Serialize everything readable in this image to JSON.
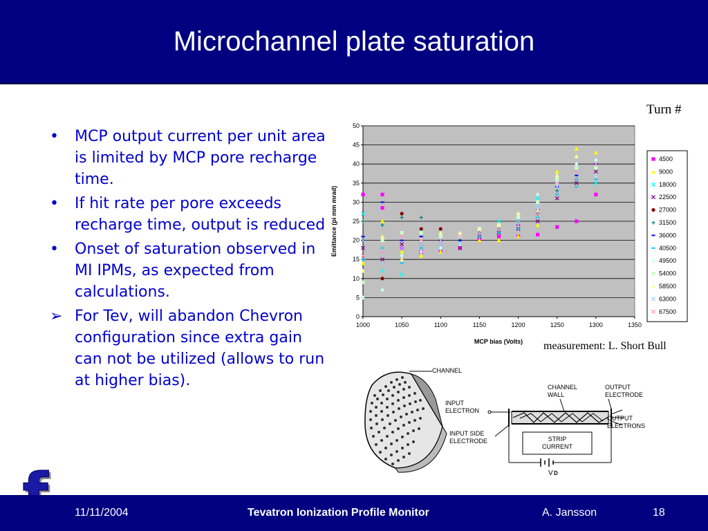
{
  "slide": {
    "title": "Microchannel plate saturation",
    "bullets": [
      {
        "marker": "•",
        "text": "MCP output current per unit area is limited by MCP pore recharge time."
      },
      {
        "marker": "•",
        "text": "If hit rate per pore exceeds recharge time, output is reduced"
      },
      {
        "marker": "•",
        "text": "Onset of saturation observed in MI IPMs, as expected from calculations."
      },
      {
        "marker": "➢",
        "text": "For Tev, will abandon Chevron configuration since extra gain can not be utilized (allows to run at higher bias)."
      }
    ],
    "turn_label": "Turn #",
    "measurement_credit": "measurement:  L. Short Bull"
  },
  "footer": {
    "date": "11/11/2004",
    "title": "Tevatron Ionization Profile Monitor",
    "author": "A. Jansson",
    "page": "18"
  },
  "logo": {
    "letter": "f",
    "color": "#1a1aa6"
  },
  "colors": {
    "title_bar": "#000080",
    "bullet_text": "#0000cc",
    "plot_bg": "#c0c0c0"
  },
  "chart_data": {
    "type": "scatter",
    "xlabel": "MCP bias (Volts)",
    "ylabel": "Emittance (pi mm mrad)",
    "xlim": [
      1000,
      1350
    ],
    "ylim": [
      0,
      50
    ],
    "xticks": [
      "1000",
      "1050",
      "1100",
      "1150",
      "1200",
      "1250",
      "1300",
      "1350"
    ],
    "yticks": [
      "0",
      "5",
      "10",
      "15",
      "20",
      "25",
      "30",
      "35",
      "40",
      "45",
      "50"
    ],
    "grid": "horizontal",
    "legend_position": "right",
    "series": [
      {
        "name": "4500",
        "color": "#ff00ff",
        "marker": "square",
        "points": [
          [
            1000,
            32
          ],
          [
            1025,
            28.5
          ],
          [
            1025,
            32
          ],
          [
            1050,
            18
          ],
          [
            1075,
            17
          ],
          [
            1100,
            17
          ],
          [
            1125,
            18
          ],
          [
            1150,
            20
          ],
          [
            1175,
            21
          ],
          [
            1200,
            21
          ],
          [
            1225,
            21.5
          ],
          [
            1250,
            23.5
          ],
          [
            1275,
            25
          ],
          [
            1300,
            32
          ]
        ]
      },
      {
        "name": "9000",
        "color": "#ffff00",
        "marker": "triangle",
        "points": [
          [
            1000,
            14
          ],
          [
            1025,
            25
          ],
          [
            1050,
            17
          ],
          [
            1075,
            16
          ],
          [
            1100,
            17
          ],
          [
            1125,
            19
          ],
          [
            1150,
            20
          ],
          [
            1175,
            20
          ],
          [
            1200,
            21
          ],
          [
            1225,
            24
          ],
          [
            1250,
            38
          ],
          [
            1275,
            44
          ],
          [
            1300,
            43
          ]
        ]
      },
      {
        "name": "18000",
        "color": "#00ffff",
        "marker": "x",
        "points": [
          [
            1000,
            27
          ],
          [
            1025,
            12
          ],
          [
            1050,
            11
          ],
          [
            1075,
            22
          ],
          [
            1100,
            20
          ],
          [
            1125,
            21
          ],
          [
            1150,
            22
          ],
          [
            1175,
            25
          ],
          [
            1200,
            26
          ],
          [
            1225,
            31
          ],
          [
            1250,
            36
          ],
          [
            1275,
            38
          ],
          [
            1300,
            35
          ]
        ]
      },
      {
        "name": "22500",
        "color": "#800080",
        "marker": "x",
        "points": [
          [
            1000,
            18
          ],
          [
            1025,
            15
          ],
          [
            1050,
            19
          ],
          [
            1075,
            19
          ],
          [
            1100,
            19
          ],
          [
            1125,
            18
          ],
          [
            1150,
            21
          ],
          [
            1175,
            22
          ],
          [
            1200,
            23
          ],
          [
            1225,
            25
          ],
          [
            1250,
            31
          ],
          [
            1275,
            35
          ],
          [
            1300,
            38
          ]
        ]
      },
      {
        "name": "27000",
        "color": "#800000",
        "marker": "circle",
        "points": [
          [
            1025,
            10
          ],
          [
            1050,
            27
          ],
          [
            1075,
            23
          ],
          [
            1100,
            23
          ]
        ]
      },
      {
        "name": "31500",
        "color": "#008080",
        "marker": "plus",
        "points": [
          [
            1000,
            25
          ],
          [
            1025,
            24
          ],
          [
            1050,
            26
          ],
          [
            1075,
            26
          ],
          [
            1100,
            21
          ],
          [
            1125,
            20
          ],
          [
            1150,
            22
          ],
          [
            1175,
            23
          ],
          [
            1200,
            25
          ],
          [
            1225,
            27
          ],
          [
            1250,
            33
          ],
          [
            1275,
            36
          ],
          [
            1300,
            39
          ]
        ]
      },
      {
        "name": "36000",
        "color": "#0000ff",
        "marker": "dash",
        "points": [
          [
            1000,
            21
          ],
          [
            1025,
            30
          ],
          [
            1050,
            20
          ],
          [
            1075,
            21
          ],
          [
            1100,
            20
          ],
          [
            1125,
            20
          ],
          [
            1150,
            21
          ],
          [
            1175,
            22
          ],
          [
            1200,
            24
          ],
          [
            1225,
            28
          ],
          [
            1250,
            34
          ],
          [
            1275,
            37
          ],
          [
            1300,
            40
          ]
        ]
      },
      {
        "name": "40500",
        "color": "#00ccff",
        "marker": "dash",
        "points": [
          [
            1000,
            15
          ],
          [
            1025,
            18
          ],
          [
            1050,
            14
          ],
          [
            1075,
            18
          ],
          [
            1100,
            18
          ],
          [
            1125,
            19
          ],
          [
            1150,
            21
          ],
          [
            1175,
            22
          ],
          [
            1200,
            23
          ],
          [
            1225,
            26
          ],
          [
            1250,
            32
          ],
          [
            1275,
            34
          ],
          [
            1300,
            36
          ]
        ]
      },
      {
        "name": "49500",
        "color": "#ccffff",
        "marker": "diamond",
        "points": [
          [
            1000,
            5
          ],
          [
            1025,
            7
          ],
          [
            1050,
            16
          ],
          [
            1075,
            17
          ],
          [
            1100,
            18
          ],
          [
            1125,
            19
          ],
          [
            1150,
            23
          ],
          [
            1175,
            24
          ],
          [
            1200,
            27
          ],
          [
            1225,
            32
          ],
          [
            1250,
            35
          ],
          [
            1275,
            40
          ],
          [
            1300,
            41
          ]
        ]
      },
      {
        "name": "54000",
        "color": "#ccffcc",
        "marker": "square",
        "points": [
          [
            1000,
            9
          ],
          [
            1025,
            20
          ],
          [
            1050,
            22
          ],
          [
            1075,
            22
          ],
          [
            1100,
            21
          ],
          [
            1125,
            21
          ],
          [
            1150,
            23
          ],
          [
            1175,
            24
          ],
          [
            1200,
            26
          ],
          [
            1225,
            30
          ],
          [
            1250,
            36
          ],
          [
            1275,
            39
          ],
          [
            1300,
            39
          ]
        ]
      },
      {
        "name": "58500",
        "color": "#ffff99",
        "marker": "triangle",
        "points": [
          [
            1000,
            12
          ],
          [
            1025,
            21
          ],
          [
            1050,
            15
          ],
          [
            1075,
            20
          ],
          [
            1100,
            22
          ],
          [
            1125,
            22
          ],
          [
            1150,
            23
          ],
          [
            1175,
            24
          ],
          [
            1200,
            27
          ],
          [
            1225,
            28
          ],
          [
            1250,
            37
          ],
          [
            1275,
            42
          ],
          [
            1300,
            37
          ]
        ]
      },
      {
        "name": "63000",
        "color": "#99ccff",
        "marker": "x",
        "points": [
          [
            1000,
            20
          ],
          [
            1025,
            14
          ],
          [
            1050,
            18
          ],
          [
            1075,
            19
          ],
          [
            1100,
            19
          ],
          [
            1125,
            19
          ],
          [
            1150,
            22
          ],
          [
            1175,
            23
          ],
          [
            1200,
            25
          ],
          [
            1225,
            29
          ],
          [
            1250,
            34
          ],
          [
            1275,
            36
          ],
          [
            1300,
            37
          ]
        ]
      },
      {
        "name": "67500",
        "color": "#ff99cc",
        "marker": "x",
        "points": [
          [
            1000,
            16
          ],
          [
            1025,
            17
          ],
          [
            1050,
            21
          ],
          [
            1075,
            20
          ],
          [
            1100,
            20
          ],
          [
            1125,
            21
          ],
          [
            1150,
            22
          ],
          [
            1175,
            23
          ],
          [
            1200,
            24
          ],
          [
            1225,
            27
          ],
          [
            1250,
            35
          ],
          [
            1275,
            38
          ],
          [
            1300,
            40
          ]
        ]
      }
    ]
  },
  "diagram": {
    "labels": {
      "channel": "CHANNEL",
      "channel_wall_1": "CHANNEL",
      "channel_wall_2": "WALL",
      "output_electrode_1": "OUTPUT",
      "output_electrode_2": "ELECTRODE",
      "input_electron_1": "INPUT",
      "input_electron_2": "ELECTRON",
      "output_electrons_1": "OUTPUT",
      "output_electrons_2": "ELECTRONS",
      "input_side_1": "INPUT SIDE",
      "input_side_2": "ELECTRODE",
      "strip_1": "STRIP",
      "strip_2": "CURRENT",
      "vd": "V",
      "vd_sub": "D"
    }
  }
}
